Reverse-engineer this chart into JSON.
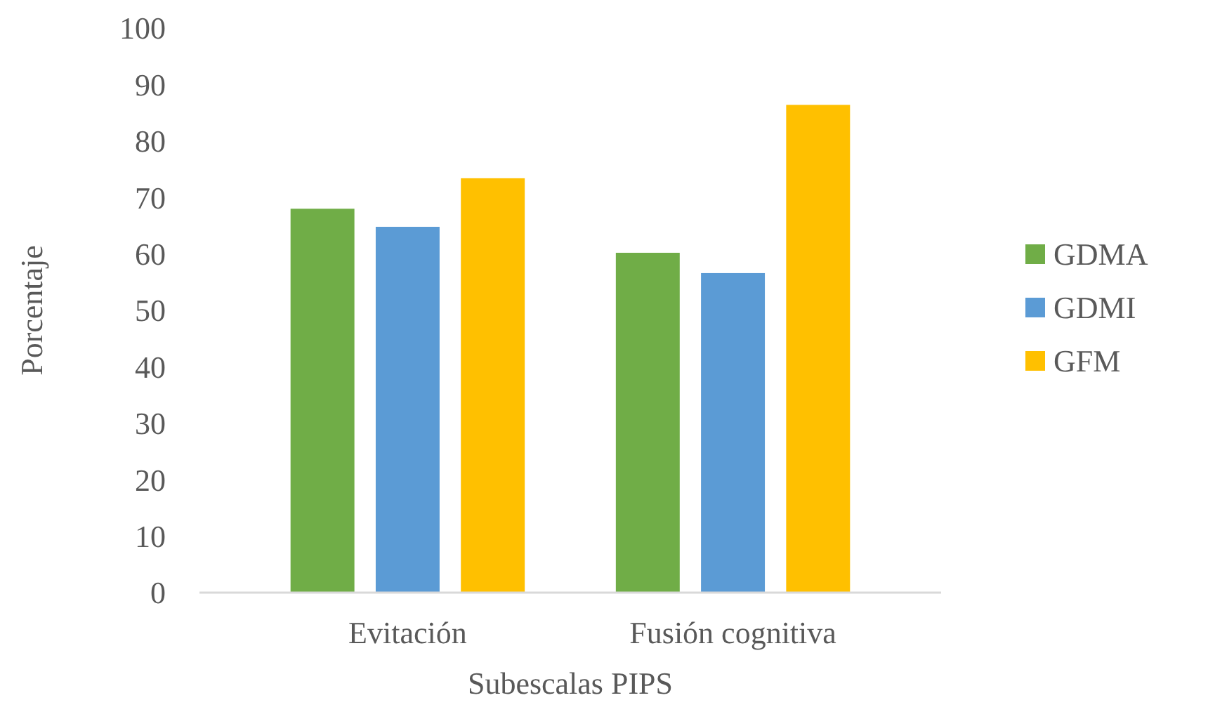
{
  "chart_data": {
    "type": "bar",
    "xlabel": "Subescalas PIPS",
    "ylabel": "Porcentaje",
    "categories": [
      "Evitación",
      "Fusión cognitiva"
    ],
    "series": [
      {
        "name": "GDMA",
        "color": "#70ad47",
        "values": [
          68,
          60.2
        ]
      },
      {
        "name": "GDMI",
        "color": "#5b9bd5",
        "values": [
          64.8,
          56.6
        ]
      },
      {
        "name": "GFM",
        "color": "#ffc000",
        "values": [
          73.4,
          86.4
        ]
      }
    ],
    "ylim": [
      0,
      100
    ],
    "yticks": [
      0,
      10,
      20,
      30,
      40,
      50,
      60,
      70,
      80,
      90,
      100
    ],
    "grid": false,
    "legend": "right"
  }
}
